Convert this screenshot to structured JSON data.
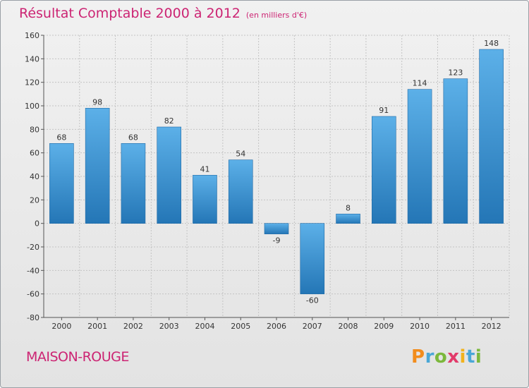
{
  "title": "Résultat Comptable 2000 à 2012",
  "subtitle": "(en milliers d'€)",
  "location": "MAISON-ROUGE",
  "brand": {
    "letters": [
      "P",
      "r",
      "o",
      "x",
      "i",
      "t",
      "i"
    ]
  },
  "colors": {
    "accent": "#cc2473",
    "bar_light": "#5aaee6",
    "bar_dark": "#2878b8"
  },
  "chart_data": {
    "type": "bar",
    "title": "Résultat Comptable 2000 à 2012",
    "ylabel": "en milliers d'€",
    "xlabel": "",
    "categories": [
      "2000",
      "2001",
      "2002",
      "2003",
      "2004",
      "2005",
      "2006",
      "2007",
      "2008",
      "2009",
      "2010",
      "2011",
      "2012"
    ],
    "values": [
      68,
      98,
      68,
      82,
      41,
      54,
      -9,
      -60,
      8,
      91,
      114,
      123,
      148
    ],
    "labels": [
      "68",
      "98",
      "68",
      "82",
      "41",
      "54",
      "-9",
      "-60",
      "8",
      "91",
      "114",
      "123",
      "148"
    ],
    "ylim": [
      -80,
      160
    ],
    "yticks": [
      -80,
      -60,
      -40,
      -20,
      0,
      20,
      40,
      60,
      80,
      100,
      120,
      140,
      160
    ],
    "grid": true,
    "legend": "none"
  }
}
